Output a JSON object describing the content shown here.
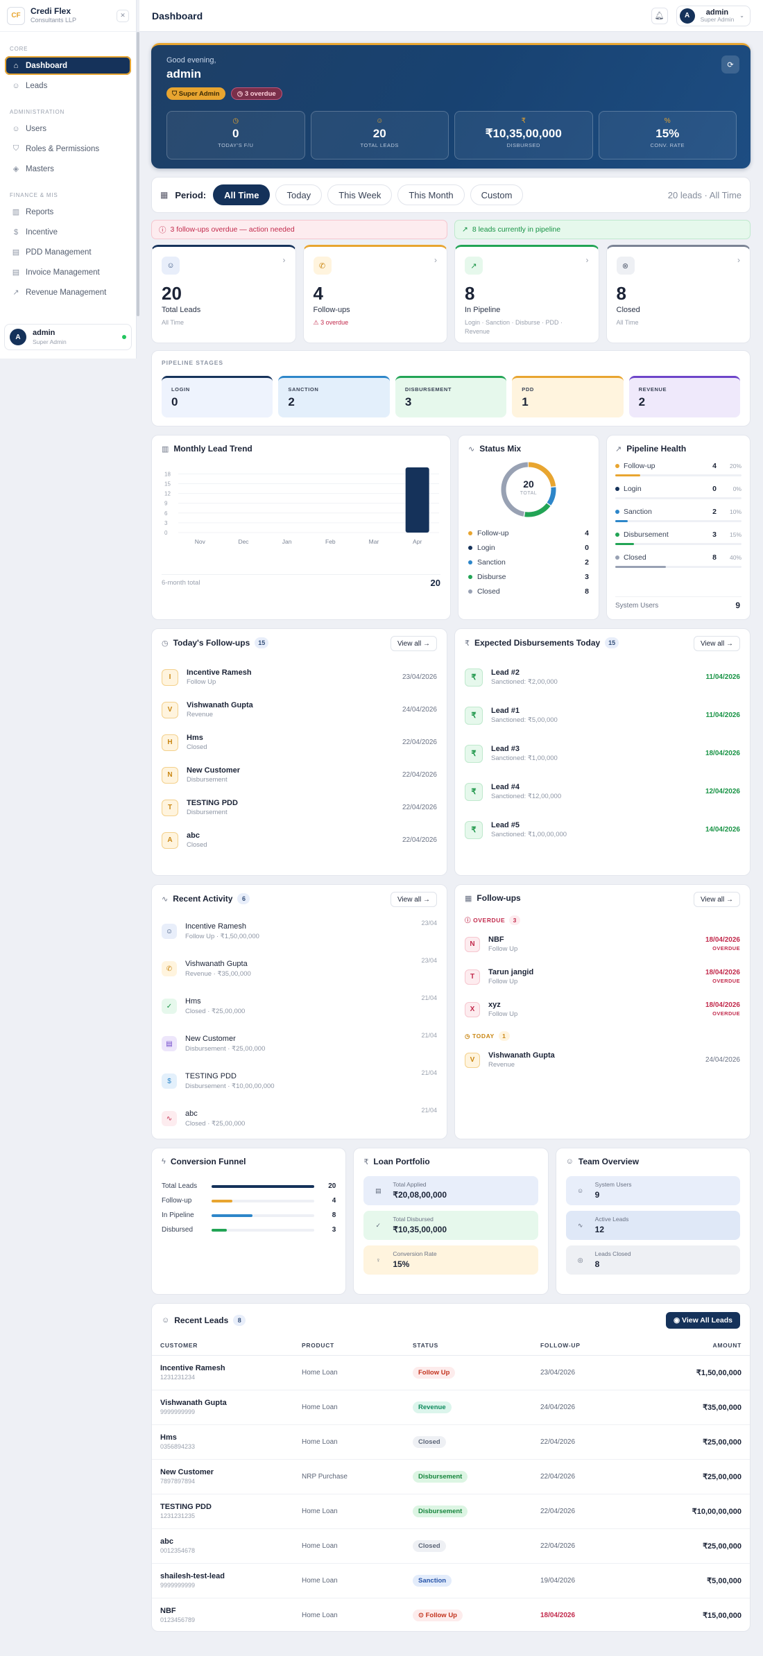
{
  "brand": {
    "name": "Credi Flex",
    "sub": "Consultants LLP",
    "logo": "CF"
  },
  "sidebar": {
    "core_label": "CORE",
    "core": [
      {
        "label": "Dashboard",
        "icon": "home-icon",
        "active": true
      },
      {
        "label": "Leads",
        "icon": "users-icon"
      }
    ],
    "admin_label": "ADMINISTRATION",
    "admin": [
      {
        "label": "Users",
        "icon": "user-icon"
      },
      {
        "label": "Roles & Permissions",
        "icon": "shield-icon"
      },
      {
        "label": "Masters",
        "icon": "layers-icon"
      }
    ],
    "fin_label": "FINANCE & MIS",
    "fin": [
      {
        "label": "Reports",
        "icon": "chart-icon"
      },
      {
        "label": "Incentive",
        "icon": "dollar-icon"
      },
      {
        "label": "PDD Management",
        "icon": "clipboard-icon"
      },
      {
        "label": "Invoice Management",
        "icon": "file-icon"
      },
      {
        "label": "Revenue Management",
        "icon": "trend-icon"
      }
    ],
    "user": {
      "initial": "A",
      "name": "admin",
      "role": "Super Admin"
    }
  },
  "topbar": {
    "title": "Dashboard",
    "user_initial": "A",
    "user_name": "admin",
    "user_role": "Super Admin"
  },
  "hero": {
    "greeting": "Good evening,",
    "name": "admin",
    "role_pill": "Super Admin",
    "overdue_pill": "3 overdue",
    "stats": [
      {
        "value": "0",
        "label": "TODAY'S F/U",
        "icon": "clock-icon"
      },
      {
        "value": "20",
        "label": "TOTAL LEADS",
        "icon": "users-icon"
      },
      {
        "value": "₹10,35,00,000",
        "label": "DISBURSED",
        "icon": "rupee-icon"
      },
      {
        "value": "15%",
        "label": "CONV. RATE",
        "icon": "percent-icon"
      }
    ]
  },
  "period": {
    "label": "Period:",
    "options": [
      "All Time",
      "Today",
      "This Week",
      "This Month",
      "Custom"
    ],
    "selected": "All Time",
    "summary": "20 leads · All Time"
  },
  "alerts": {
    "overdue": "3 follow-ups overdue — action needed",
    "pipeline": "8 leads currently in pipeline"
  },
  "kpis": [
    {
      "value": "20",
      "label": "Total Leads",
      "sub": "All Time",
      "color": "#15325a"
    },
    {
      "value": "4",
      "label": "Follow-ups",
      "sub": "⚠ 3 overdue",
      "color": "#e8a530"
    },
    {
      "value": "8",
      "label": "In Pipeline",
      "sub": "Login · Sanction · Disburse · PDD · Revenue",
      "color": "#22a455"
    },
    {
      "value": "8",
      "label": "Closed",
      "sub": "All Time",
      "color": "#7a8394"
    }
  ],
  "stages": {
    "title": "PIPELINE STAGES",
    "items": [
      {
        "label": "LOGIN",
        "value": "0"
      },
      {
        "label": "SANCTION",
        "value": "2"
      },
      {
        "label": "DISBURSEMENT",
        "value": "3"
      },
      {
        "label": "PDD",
        "value": "1"
      },
      {
        "label": "REVENUE",
        "value": "2"
      }
    ]
  },
  "chart_data": {
    "type": "bar",
    "title": "Monthly Lead Trend",
    "categories": [
      "Nov",
      "Dec",
      "Jan",
      "Feb",
      "Mar",
      "Apr"
    ],
    "values": [
      0,
      0,
      0,
      0,
      0,
      20
    ],
    "ylim": [
      0,
      20
    ],
    "yticks": [
      "0",
      "3",
      "6",
      "9",
      "12",
      "15",
      "18"
    ],
    "grid": true,
    "total_label": "6-month total",
    "total": "20"
  },
  "status_mix": {
    "title": "Status Mix",
    "total": "20",
    "total_label": "TOTAL",
    "items": [
      {
        "label": "Follow-up",
        "value": "4",
        "color": "#e8a530"
      },
      {
        "label": "Login",
        "value": "0",
        "color": "#15325a"
      },
      {
        "label": "Sanction",
        "value": "2",
        "color": "#2d86c9"
      },
      {
        "label": "Disburse",
        "value": "3",
        "color": "#22a455"
      },
      {
        "label": "Closed",
        "value": "8",
        "color": "#98a1b3"
      }
    ]
  },
  "health": {
    "title": "Pipeline Health",
    "items": [
      {
        "label": "Follow-up",
        "value": "4",
        "pct": "20%",
        "color": "#e8a530"
      },
      {
        "label": "Login",
        "value": "0",
        "pct": "0%",
        "color": "#15325a"
      },
      {
        "label": "Sanction",
        "value": "2",
        "pct": "10%",
        "color": "#2d86c9"
      },
      {
        "label": "Disbursement",
        "value": "3",
        "pct": "15%",
        "color": "#22a455"
      },
      {
        "label": "Closed",
        "value": "8",
        "pct": "40%",
        "color": "#98a1b3"
      }
    ],
    "system_users_label": "System Users",
    "system_users": "9"
  },
  "today_followups": {
    "title": "Today's Follow-ups",
    "count": "15",
    "view_all": "View all →",
    "items": [
      {
        "initial": "I",
        "name": "Incentive Ramesh",
        "status": "Follow Up",
        "date": "23/04/2026"
      },
      {
        "initial": "V",
        "name": "Vishwanath Gupta",
        "status": "Revenue",
        "date": "24/04/2026"
      },
      {
        "initial": "H",
        "name": "Hms",
        "status": "Closed",
        "date": "22/04/2026"
      },
      {
        "initial": "N",
        "name": "New Customer",
        "status": "Disbursement",
        "date": "22/04/2026"
      },
      {
        "initial": "T",
        "name": "TESTING PDD",
        "status": "Disbursement",
        "date": "22/04/2026"
      },
      {
        "initial": "A",
        "name": "abc",
        "status": "Closed",
        "date": "22/04/2026"
      }
    ]
  },
  "disbursements": {
    "title": "Expected Disbursements Today",
    "count": "15",
    "view_all": "View all →",
    "items": [
      {
        "name": "Lead #2",
        "sub": "Sanctioned: ₹2,00,000",
        "date": "11/04/2026"
      },
      {
        "name": "Lead #1",
        "sub": "Sanctioned: ₹5,00,000",
        "date": "11/04/2026"
      },
      {
        "name": "Lead #3",
        "sub": "Sanctioned: ₹1,00,000",
        "date": "18/04/2026"
      },
      {
        "name": "Lead #4",
        "sub": "Sanctioned: ₹12,00,000",
        "date": "12/04/2026"
      },
      {
        "name": "Lead #5",
        "sub": "Sanctioned: ₹1,00,00,000",
        "date": "14/04/2026"
      }
    ]
  },
  "activity": {
    "title": "Recent Activity",
    "count": "6",
    "view_all": "View all →",
    "items": [
      {
        "name": "Incentive Ramesh",
        "sub": "Follow Up · ₹1,50,00,000",
        "date": "23/04",
        "icon": "users-icon",
        "color": "#e8eefa",
        "fg": "#35507a",
        "glyph": "☺"
      },
      {
        "name": "Vishwanath Gupta",
        "sub": "Revenue · ₹35,00,000",
        "date": "23/04",
        "icon": "phone-icon",
        "color": "#fff4de",
        "fg": "#c98613",
        "glyph": "✆"
      },
      {
        "name": "Hms",
        "sub": "Closed · ₹25,00,000",
        "date": "21/04",
        "icon": "check-icon",
        "color": "#e6f8ec",
        "fg": "#189345",
        "glyph": "✓"
      },
      {
        "name": "New Customer",
        "sub": "Disbursement · ₹25,00,000",
        "date": "21/04",
        "icon": "doc-icon",
        "color": "#ede6fb",
        "fg": "#6d45c9",
        "glyph": "▤"
      },
      {
        "name": "TESTING PDD",
        "sub": "Disbursement · ₹10,00,00,000",
        "date": "21/04",
        "icon": "dollar-icon",
        "color": "#e3f0fb",
        "fg": "#2d86c9",
        "glyph": "$"
      },
      {
        "name": "abc",
        "sub": "Closed · ₹25,00,000",
        "date": "21/04",
        "icon": "pulse-icon",
        "color": "#fdecef",
        "fg": "#c22a4c",
        "glyph": "∿"
      }
    ]
  },
  "followups": {
    "title": "Follow-ups",
    "view_all": "View all →",
    "overdue_label": "OVERDUE",
    "overdue_count": "3",
    "overdue": [
      {
        "initial": "N",
        "name": "NBF",
        "status": "Follow Up",
        "date": "18/04/2026",
        "flag": "OVERDUE"
      },
      {
        "initial": "T",
        "name": "Tarun jangid",
        "status": "Follow Up",
        "date": "18/04/2026",
        "flag": "OVERDUE"
      },
      {
        "initial": "X",
        "name": "xyz",
        "status": "Follow Up",
        "date": "18/04/2026",
        "flag": "OVERDUE"
      }
    ],
    "today_label": "TODAY",
    "today_count": "1",
    "today": [
      {
        "initial": "V",
        "name": "Vishwanath Gupta",
        "status": "Revenue",
        "date": "24/04/2026"
      }
    ]
  },
  "funnel": {
    "title": "Conversion Funnel",
    "items": [
      {
        "label": "Total Leads",
        "value": 20,
        "color": "#15325a"
      },
      {
        "label": "Follow-up",
        "value": 4,
        "color": "#e8a530"
      },
      {
        "label": "In Pipeline",
        "value": 8,
        "color": "#2d86c9"
      },
      {
        "label": "Disbursed",
        "value": 3,
        "color": "#22a455"
      }
    ]
  },
  "portfolio": {
    "title": "Loan Portfolio",
    "items": [
      {
        "label": "Total Applied",
        "value": "₹20,08,00,000",
        "bg": "#e8eefa",
        "glyph": "▤"
      },
      {
        "label": "Total Disbursed",
        "value": "₹10,35,00,000",
        "bg": "#e6f8ec",
        "glyph": "✓"
      },
      {
        "label": "Conversion Rate",
        "value": "15%",
        "bg": "#fff4de",
        "glyph": "♀"
      }
    ]
  },
  "team": {
    "title": "Team Overview",
    "items": [
      {
        "label": "System Users",
        "value": "9",
        "bg": "#e8eefa",
        "glyph": "☺"
      },
      {
        "label": "Active Leads",
        "value": "12",
        "bg": "#dfe8f7",
        "glyph": "∿"
      },
      {
        "label": "Leads Closed",
        "value": "8",
        "bg": "#eef0f4",
        "glyph": "◎"
      }
    ]
  },
  "recent_leads": {
    "title": "Recent Leads",
    "count": "8",
    "button": "View All Leads",
    "columns": [
      "CUSTOMER",
      "PRODUCT",
      "STATUS",
      "FOLLOW-UP",
      "AMOUNT"
    ],
    "rows": [
      {
        "name": "Incentive Ramesh",
        "phone": "1231231234",
        "product": "Home Loan",
        "status": "Follow Up",
        "sc": "#fdecec",
        "sf": "#c2331e",
        "date": "23/04/2026",
        "amount": "₹1,50,00,000"
      },
      {
        "name": "Vishwanath Gupta",
        "phone": "9999999999",
        "product": "Home Loan",
        "status": "Revenue",
        "sc": "#dcf5ec",
        "sf": "#0e8a5c",
        "date": "24/04/2026",
        "amount": "₹35,00,000"
      },
      {
        "name": "Hms",
        "phone": "0356894233",
        "product": "Home Loan",
        "status": "Closed",
        "sc": "#eef0f4",
        "sf": "#5c6577",
        "date": "22/04/2026",
        "amount": "₹25,00,000"
      },
      {
        "name": "New Customer",
        "phone": "7897897894",
        "product": "NRP Purchase",
        "status": "Disbursement",
        "sc": "#dcf5e3",
        "sf": "#17853d",
        "date": "22/04/2026",
        "amount": "₹25,00,000"
      },
      {
        "name": "TESTING PDD",
        "phone": "1231231235",
        "product": "Home Loan",
        "status": "Disbursement",
        "sc": "#dcf5e3",
        "sf": "#17853d",
        "date": "22/04/2026",
        "amount": "₹10,00,00,000"
      },
      {
        "name": "abc",
        "phone": "0012354678",
        "product": "Home Loan",
        "status": "Closed",
        "sc": "#eef0f4",
        "sf": "#5c6577",
        "date": "22/04/2026",
        "amount": "₹25,00,000"
      },
      {
        "name": "shailesh-test-lead",
        "phone": "9999999999",
        "product": "Home Loan",
        "status": "Sanction",
        "sc": "#e3ecfb",
        "sf": "#2553a8",
        "date": "19/04/2026",
        "amount": "₹5,00,000"
      },
      {
        "name": "NBF",
        "phone": "0123456789",
        "product": "Home Loan",
        "status": "⊙ Follow Up",
        "sc": "#fdecec",
        "sf": "#c2331e",
        "date": "18/04/2026",
        "date_color": "#c22a4c",
        "amount": "₹15,00,000"
      }
    ]
  }
}
